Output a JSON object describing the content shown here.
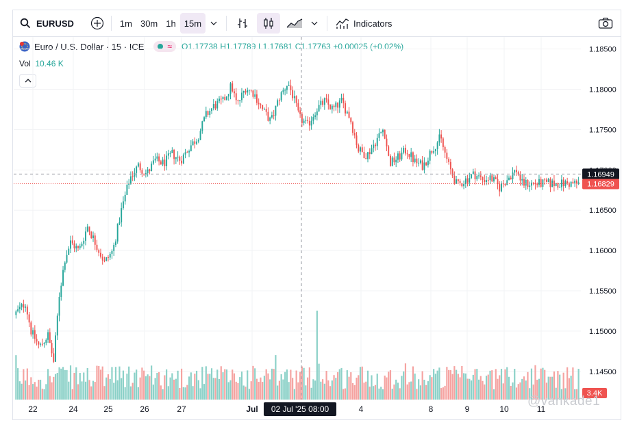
{
  "toolbar": {
    "symbol": "EURUSD",
    "intervals": [
      "1m",
      "30m",
      "1h",
      "15m"
    ],
    "active_interval": "15m",
    "indicators_label": "Indicators"
  },
  "legend": {
    "name": "Euro / U.S. Dollar · 15 · ICE",
    "open": "O1.17738",
    "high": "H1.17789",
    "low": "L1.17681",
    "close": "C1.17763",
    "change": "+0.00025 (+0.02%)",
    "vol_label": "Vol",
    "vol_value": "10.46 K"
  },
  "crosshair": {
    "time_label": "02 Jul '25   08:00"
  },
  "watermark": "@vankade1",
  "colors": {
    "up": "#26a69a",
    "down": "#ef5350",
    "vol_up": "#8cd1c8",
    "vol_down": "#f5a3a1"
  },
  "chart_data": {
    "type": "candlestick",
    "x_tick_labels": [
      "22",
      "24",
      "25",
      "26",
      "27",
      "Jul",
      "4",
      "8",
      "9",
      "10",
      "11"
    ],
    "y_tick_labels": [
      "1.18500",
      "1.18000",
      "1.17500",
      "1.17000",
      "1.16500",
      "1.16000",
      "1.15500",
      "1.15000",
      "1.14500"
    ],
    "ylim": [
      1.1415,
      1.1865
    ],
    "price_labels": [
      {
        "value": 1.16949,
        "text": "1.16949",
        "style": "dashed"
      },
      {
        "value": 1.16829,
        "text": "1.16829",
        "style": "dotted-red"
      }
    ],
    "volume_label": "3.4K",
    "close_path": [
      [
        0,
        1.152
      ],
      [
        0.02,
        1.1535
      ],
      [
        0.03,
        1.15
      ],
      [
        0.045,
        1.148
      ],
      [
        0.06,
        1.1495
      ],
      [
        0.07,
        1.1462
      ],
      [
        0.08,
        1.1545
      ],
      [
        0.09,
        1.159
      ],
      [
        0.1,
        1.161
      ],
      [
        0.115,
        1.16
      ],
      [
        0.13,
        1.163
      ],
      [
        0.145,
        1.1608
      ],
      [
        0.16,
        1.1585
      ],
      [
        0.175,
        1.16
      ],
      [
        0.19,
        1.165
      ],
      [
        0.205,
        1.169
      ],
      [
        0.22,
        1.1705
      ],
      [
        0.235,
        1.1695
      ],
      [
        0.25,
        1.1712
      ],
      [
        0.265,
        1.1708
      ],
      [
        0.28,
        1.172
      ],
      [
        0.295,
        1.1712
      ],
      [
        0.31,
        1.1728
      ],
      [
        0.325,
        1.174
      ],
      [
        0.34,
        1.1768
      ],
      [
        0.355,
        1.178
      ],
      [
        0.37,
        1.1785
      ],
      [
        0.385,
        1.1805
      ],
      [
        0.395,
        1.178
      ],
      [
        0.41,
        1.1802
      ],
      [
        0.425,
        1.1795
      ],
      [
        0.44,
        1.1775
      ],
      [
        0.455,
        1.176
      ],
      [
        0.47,
        1.179
      ],
      [
        0.485,
        1.1808
      ],
      [
        0.495,
        1.179
      ],
      [
        0.505,
        1.1765
      ],
      [
        0.52,
        1.1755
      ],
      [
        0.535,
        1.1775
      ],
      [
        0.55,
        1.1785
      ],
      [
        0.565,
        1.1775
      ],
      [
        0.58,
        1.1785
      ],
      [
        0.595,
        1.1765
      ],
      [
        0.61,
        1.1725
      ],
      [
        0.625,
        1.1718
      ],
      [
        0.64,
        1.1735
      ],
      [
        0.655,
        1.1752
      ],
      [
        0.665,
        1.1708
      ],
      [
        0.68,
        1.1715
      ],
      [
        0.695,
        1.1725
      ],
      [
        0.71,
        1.171
      ],
      [
        0.725,
        1.1705
      ],
      [
        0.74,
        1.1725
      ],
      [
        0.755,
        1.174
      ],
      [
        0.77,
        1.1705
      ],
      [
        0.785,
        1.168
      ],
      [
        0.8,
        1.1688
      ],
      [
        0.815,
        1.1695
      ],
      [
        0.83,
        1.1688
      ],
      [
        0.845,
        1.169
      ],
      [
        0.86,
        1.1678
      ],
      [
        0.875,
        1.169
      ],
      [
        0.89,
        1.17
      ],
      [
        0.9,
        1.1683
      ]
    ]
  }
}
